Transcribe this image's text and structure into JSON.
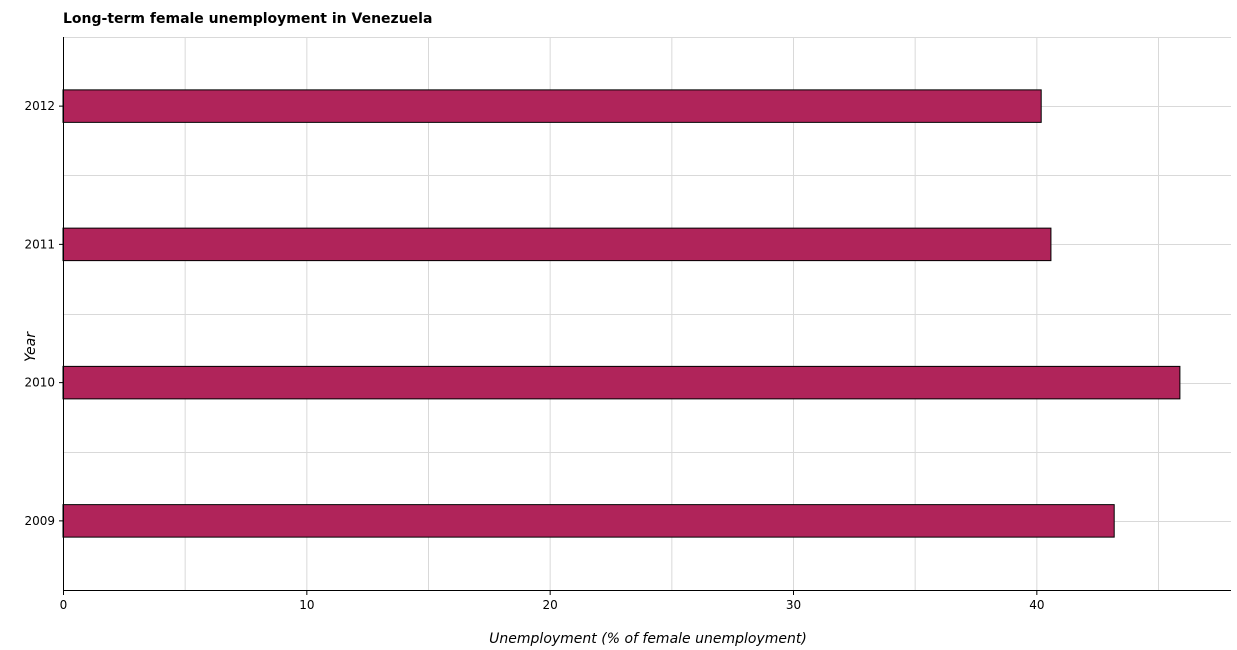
{
  "chart_data": {
    "type": "bar",
    "orientation": "horizontal",
    "title": "Long-term female unemployment in Venezuela",
    "xlabel": "Unemployment (% of female unemployment)",
    "ylabel": "Year",
    "categories": [
      "2009",
      "2010",
      "2011",
      "2012"
    ],
    "values": [
      43.2,
      45.9,
      40.6,
      40.2
    ],
    "xlim": [
      0,
      48
    ],
    "xticks": [
      0,
      10,
      20,
      30,
      40
    ],
    "grid": true,
    "bar_color": "#b0245a"
  }
}
